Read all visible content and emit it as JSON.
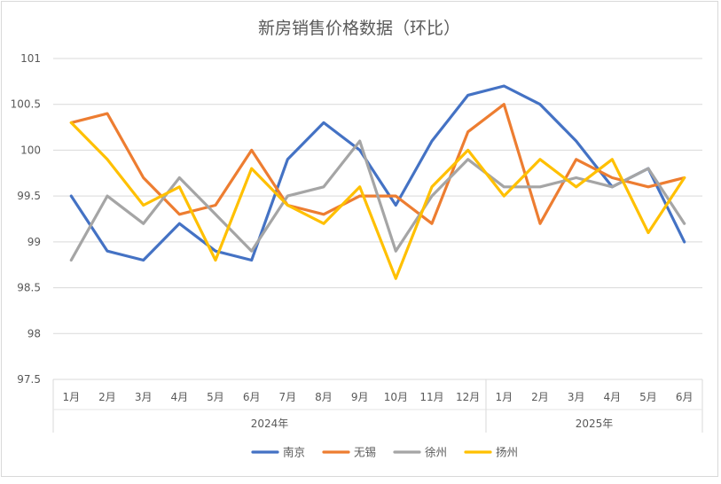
{
  "chart_data": {
    "type": "line",
    "title": "新房销售价格数据（环比）",
    "categories": [
      "1月",
      "2月",
      "3月",
      "4月",
      "5月",
      "6月",
      "7月",
      "8月",
      "9月",
      "10月",
      "11月",
      "12月",
      "1月",
      "2月",
      "3月",
      "4月",
      "5月",
      "6月"
    ],
    "groups": [
      {
        "label": "2024年",
        "count": 12
      },
      {
        "label": "2025年",
        "count": 6
      }
    ],
    "ylim": [
      97.5,
      101
    ],
    "yticks": [
      97.5,
      98,
      98.5,
      99,
      99.5,
      100,
      100.5,
      101
    ],
    "grid": true,
    "legend_position": "bottom",
    "series": [
      {
        "name": "南京",
        "color": "#4472C4",
        "values": [
          99.5,
          98.9,
          98.8,
          99.2,
          98.9,
          98.8,
          99.9,
          100.3,
          100.0,
          99.4,
          100.1,
          100.6,
          100.7,
          100.5,
          100.1,
          99.6,
          99.8,
          99.0
        ]
      },
      {
        "name": "无锡",
        "color": "#ED7D31",
        "values": [
          100.3,
          100.4,
          99.7,
          99.3,
          99.4,
          100.0,
          99.4,
          99.3,
          99.5,
          99.5,
          99.2,
          100.2,
          100.5,
          99.2,
          99.9,
          99.7,
          99.6,
          99.7
        ]
      },
      {
        "name": "徐州",
        "color": "#A5A5A5",
        "values": [
          98.8,
          99.5,
          99.2,
          99.7,
          99.3,
          98.9,
          99.5,
          99.6,
          100.1,
          98.9,
          99.5,
          99.9,
          99.6,
          99.6,
          99.7,
          99.6,
          99.8,
          99.2
        ]
      },
      {
        "name": "扬州",
        "color": "#FFC000",
        "values": [
          100.3,
          99.9,
          99.4,
          99.6,
          98.8,
          99.8,
          99.4,
          99.2,
          99.6,
          98.6,
          99.6,
          100.0,
          99.5,
          99.9,
          99.6,
          99.9,
          99.1,
          99.7
        ]
      }
    ]
  }
}
